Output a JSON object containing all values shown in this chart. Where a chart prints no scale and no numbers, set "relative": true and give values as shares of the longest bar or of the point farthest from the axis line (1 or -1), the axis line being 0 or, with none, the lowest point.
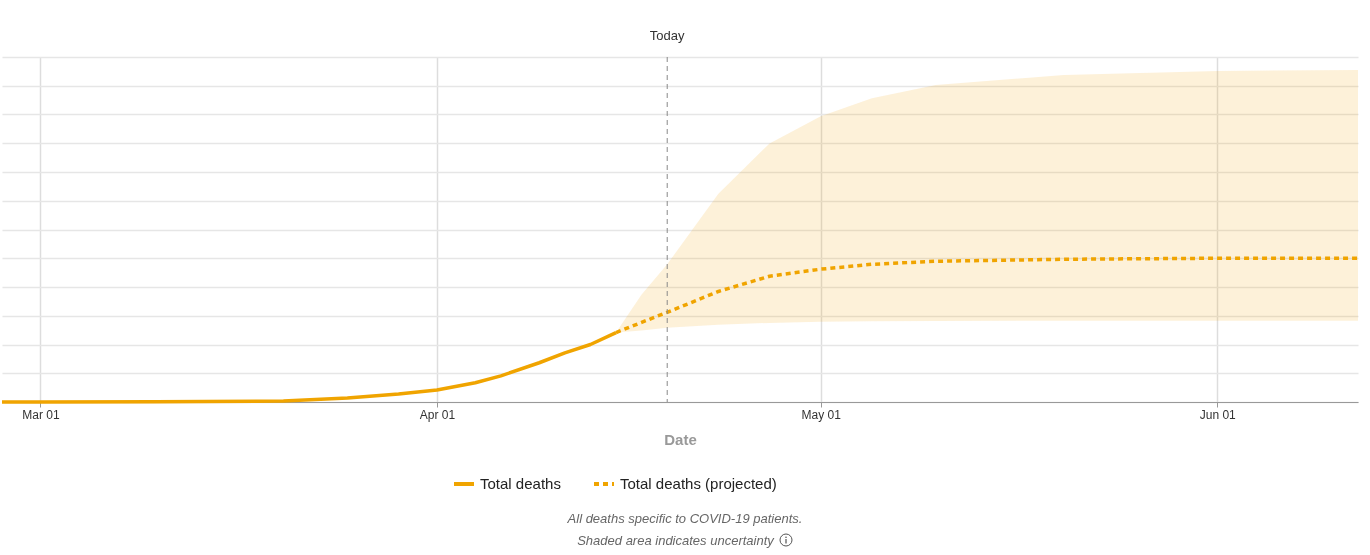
{
  "chart_data": {
    "type": "line",
    "relative": true,
    "xlabel": "Date",
    "xlim": [
      "--02-26",
      "--06-12"
    ],
    "xticks": [
      {
        "value": "--03-01",
        "label": "Mar 01"
      },
      {
        "value": "--04-01",
        "label": "Apr 01"
      },
      {
        "value": "--05-01",
        "label": "May 01"
      },
      {
        "value": "--06-01",
        "label": "Jun 01"
      }
    ],
    "series": [
      {
        "name": "Total deaths",
        "color": "#f0a400",
        "line_style": "solid",
        "x": [
          "--02-26",
          "--03-01",
          "--03-10",
          "--03-20",
          "--03-25",
          "--03-29",
          "--04-01",
          "--04-04",
          "--04-06",
          "--04-09",
          "--04-11",
          "--04-13",
          "--04-15"
        ],
        "values": [
          0,
          0,
          0.002,
          0.007,
          0.028,
          0.055,
          0.083,
          0.134,
          0.182,
          0.273,
          0.342,
          0.4,
          0.483
        ]
      },
      {
        "name": "Total deaths (projected)",
        "color": "#f0a400",
        "line_style": "dashed",
        "x": [
          "--04-15",
          "--04-17",
          "--04-19",
          "--04-23",
          "--04-27",
          "--05-01",
          "--05-05",
          "--05-10",
          "--05-20",
          "--06-01",
          "--06-12"
        ],
        "values": [
          0.483,
          0.554,
          0.624,
          0.769,
          0.875,
          0.924,
          0.958,
          0.979,
          0.993,
          1,
          1
        ],
        "lower": [
          0.483,
          0.497,
          0.517,
          0.538,
          0.55,
          0.559,
          0.561,
          0.564,
          0.566,
          0.566,
          0.566
        ],
        "upper": [
          0.483,
          0.748,
          0.958,
          1.448,
          1.799,
          1.988,
          2.113,
          2.206,
          2.275,
          2.303,
          2.309
        ]
      }
    ],
    "ref_lines": [
      {
        "axis": "x",
        "value": "--04-19",
        "label": "Today",
        "color": "#888888",
        "line_style": "dashed"
      }
    ],
    "grid": true,
    "legend": "bottom",
    "annotations": [
      "All deaths specific to COVID-19 patients.",
      "Shaded area indicates uncertainty"
    ]
  }
}
